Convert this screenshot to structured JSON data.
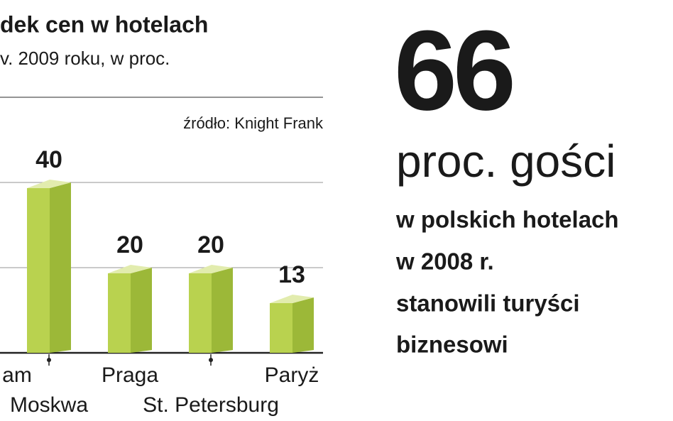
{
  "chart_data": {
    "type": "bar3d",
    "title": "dek cen w hotelach",
    "subtitle": "v. 2009 roku, w proc.",
    "source": "źródło: Knight Frank",
    "categories": [
      "am",
      "Moskwa",
      "Praga",
      "St. Petersburg",
      "Paryż"
    ],
    "values": [
      null,
      40,
      20,
      20,
      13
    ],
    "color": "#b9d24f",
    "ylim": [
      0,
      60
    ],
    "yticks": [
      0,
      20,
      40,
      60
    ],
    "grid": true
  },
  "callout": {
    "number": "66",
    "unit": "proc. gości",
    "lines": [
      "w polskich hotelach",
      "w 2008 r.",
      "stanowili turyści",
      "biznesowi"
    ]
  }
}
